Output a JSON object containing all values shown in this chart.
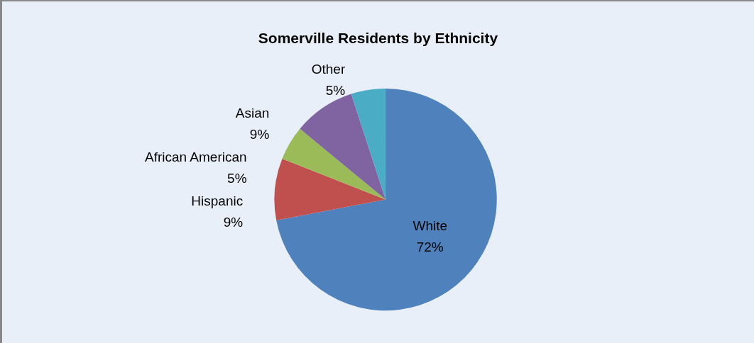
{
  "chart_data": {
    "type": "pie",
    "title": "Somerville Residents by Ethnicity",
    "categories": [
      "White",
      "Hispanic",
      "African American",
      "Asian",
      "Other"
    ],
    "values": [
      72,
      9,
      5,
      9,
      5
    ],
    "value_labels": [
      "72%",
      "9%",
      "5%",
      "9%",
      "5%"
    ],
    "colors": [
      "#4f81bd",
      "#c0504d",
      "#9bbb59",
      "#8064a2",
      "#4bacc6"
    ],
    "legend": false
  }
}
